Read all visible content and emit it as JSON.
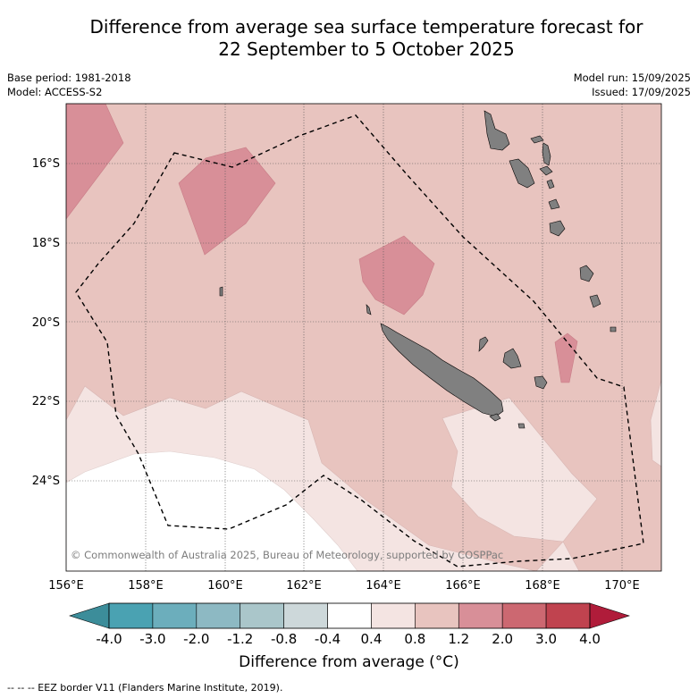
{
  "title": "Difference from average sea surface temperature forecast for\n22 September to 5 October 2025",
  "meta_left": {
    "base_period": "Base period: 1981-2018",
    "model": "Model: ACCESS-S2"
  },
  "meta_right": {
    "model_run": "Model run: 15/09/2025",
    "issued": "Issued: 17/09/2025"
  },
  "lat_labels": [
    "16°S",
    "18°S",
    "20°S",
    "22°S",
    "24°S"
  ],
  "lon_labels": [
    "156°E",
    "158°E",
    "160°E",
    "162°E",
    "164°E",
    "166°E",
    "168°E",
    "170°E"
  ],
  "copyright": "© Commonwealth of Australia 2025, Bureau of Meteorology, supported by COSPPac",
  "colorbar": {
    "title": "Difference from average (°C)",
    "ticks": [
      "-4.0",
      "-3.0",
      "-2.0",
      "-1.2",
      "-0.8",
      "-0.4",
      "0.4",
      "0.8",
      "1.2",
      "2.0",
      "3.0",
      "4.0"
    ],
    "colors": [
      "#4aa2b2",
      "#6caebc",
      "#8db9c3",
      "#aac6ca",
      "#cdd8da",
      "#ffffff",
      "#f4e4e2",
      "#e8c4bf",
      "#d88f98",
      "#cc6871",
      "#c0434f"
    ],
    "under_color": "#3c8d9a",
    "over_color": "#b01c3a"
  },
  "legend_note": "-- -- -- EEZ border V11 (Flanders Marine Institute, 2019).",
  "land_color": "#808080"
}
